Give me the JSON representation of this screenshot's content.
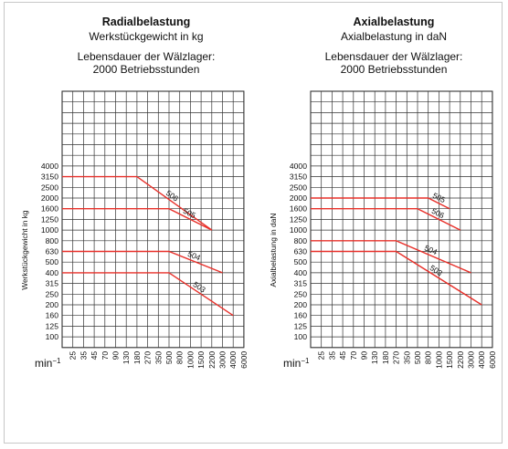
{
  "chart_data": [
    {
      "type": "line",
      "title": "Radialbelastung",
      "subtitle": "Werkstückgewicht in kg",
      "note_line1": "Lebensdauer der Wälzlager:",
      "note_line2": "2000 Betriebsstunden",
      "ylabel": "Werkstückgewicht in kg",
      "xlabel": "min-1",
      "x_ticks": [
        "25",
        "35",
        "45",
        "70",
        "90",
        "130",
        "180",
        "270",
        "350",
        "500",
        "800",
        "1000",
        "1500",
        "2200",
        "3000",
        "4000",
        "6000"
      ],
      "y_ticks": [
        "4000",
        "3150",
        "2500",
        "2000",
        "1600",
        "1250",
        "1000",
        "800",
        "630",
        "500",
        "400",
        "315",
        "250",
        "200",
        "160",
        "125",
        "100"
      ],
      "grid": true,
      "series": [
        {
          "name": "506",
          "points": [
            [
              "25",
              "3150"
            ],
            [
              "180",
              "3150"
            ],
            [
              "2200",
              "1000"
            ]
          ]
        },
        {
          "name": "505",
          "points": [
            [
              "25",
              "1600"
            ],
            [
              "500",
              "1600"
            ],
            [
              "2200",
              "1000"
            ]
          ]
        },
        {
          "name": "504",
          "points": [
            [
              "25",
              "630"
            ],
            [
              "500",
              "630"
            ],
            [
              "3000",
              "400"
            ]
          ]
        },
        {
          "name": "503",
          "points": [
            [
              "25",
              "400"
            ],
            [
              "500",
              "400"
            ],
            [
              "4000",
              "160"
            ]
          ]
        }
      ]
    },
    {
      "type": "line",
      "title": "Axialbelastung",
      "subtitle": "Axialbelastung in daN",
      "note_line1": "Lebensdauer der Wälzlager:",
      "note_line2": "2000 Betriebsstunden",
      "ylabel": "Axialbelastung in daN",
      "xlabel": "min-1",
      "x_ticks": [
        "25",
        "35",
        "45",
        "70",
        "90",
        "130",
        "180",
        "270",
        "350",
        "500",
        "800",
        "1000",
        "1500",
        "2200",
        "3000",
        "4000",
        "6000"
      ],
      "y_ticks": [
        "4000",
        "3150",
        "2500",
        "2000",
        "1600",
        "1250",
        "1000",
        "800",
        "630",
        "500",
        "400",
        "315",
        "250",
        "200",
        "160",
        "125",
        "100"
      ],
      "grid": true,
      "series": [
        {
          "name": "505",
          "points": [
            [
              "25",
              "2000"
            ],
            [
              "800",
              "2000"
            ],
            [
              "1500",
              "1600"
            ]
          ]
        },
        {
          "name": "506",
          "points": [
            [
              "25",
              "1600"
            ],
            [
              "500",
              "1600"
            ],
            [
              "2200",
              "1000"
            ]
          ]
        },
        {
          "name": "504",
          "points": [
            [
              "25",
              "800"
            ],
            [
              "270",
              "800"
            ],
            [
              "3000",
              "400"
            ]
          ]
        },
        {
          "name": "503",
          "points": [
            [
              "25",
              "630"
            ],
            [
              "270",
              "630"
            ],
            [
              "4000",
              "200"
            ]
          ]
        }
      ]
    }
  ],
  "colors": {
    "grid": "#333333",
    "series": "#e8302a"
  }
}
